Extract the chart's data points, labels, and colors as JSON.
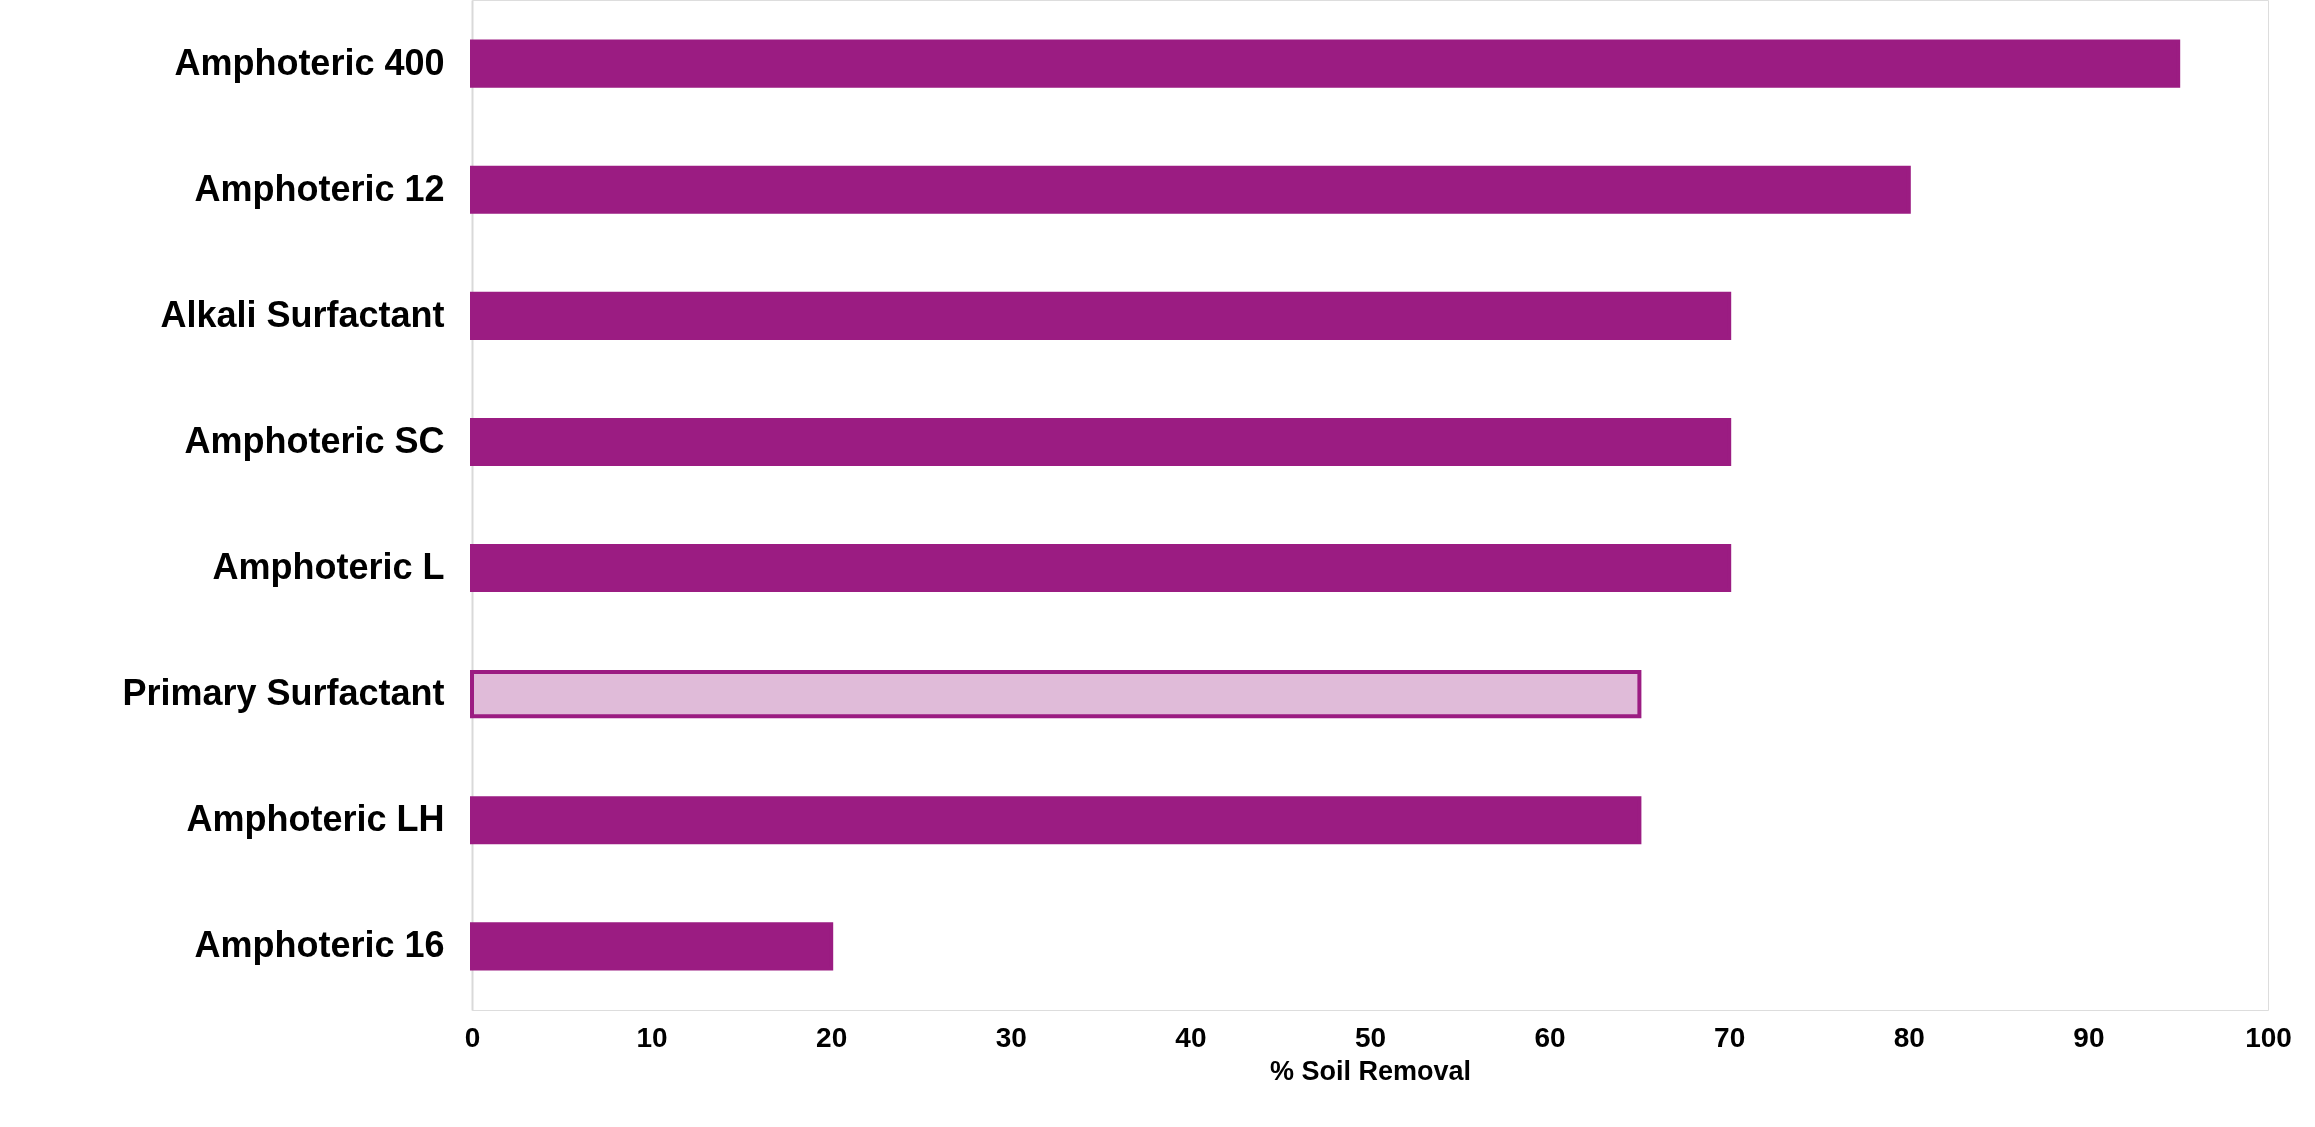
{
  "chart_data": {
    "type": "bar",
    "orientation": "horizontal",
    "xlabel": "% Soil Removal",
    "categories": [
      "Amphoteric 400",
      "Amphoteric 12",
      "Alkali Surfactant",
      "Amphoteric SC",
      "Amphoteric L",
      "Primary Surfactant",
      "Amphoteric LH",
      "Amphoteric 16"
    ],
    "values": [
      95,
      80,
      70,
      70,
      70,
      65,
      65,
      20
    ],
    "colors": [
      "#9b1c82",
      "#9b1c82",
      "#9b1c82",
      "#9b1c82",
      "#9b1c82",
      "#e0bbd9",
      "#9b1c82",
      "#9b1c82"
    ],
    "xlim": [
      0,
      100
    ],
    "xticks": [
      0,
      10,
      20,
      30,
      40,
      50,
      60,
      70,
      80,
      90,
      100
    ]
  }
}
